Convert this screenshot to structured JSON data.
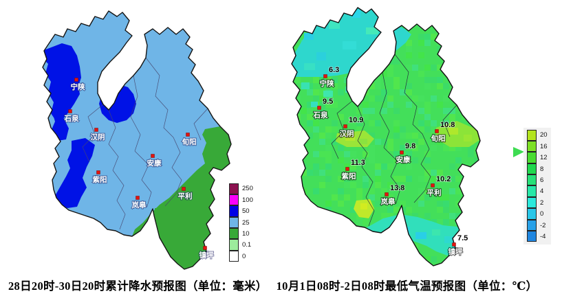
{
  "caption": {
    "precipitation": "28日20时-30日20时累计降水预报图（单位：毫米）",
    "temperature": "10月1日08时-2日08时最低气温预报图（单位：℃）"
  },
  "precip_map": {
    "base_color": "#6FB5E7",
    "heavy_rain_color": "#0012E6",
    "moderate_rain_color": "#38A938",
    "boundary_color": "#151515",
    "legend": [
      {
        "label": "250",
        "color": "#8C1250"
      },
      {
        "label": "100",
        "color": "#FB00FB"
      },
      {
        "label": "50",
        "color": "#0000E6"
      },
      {
        "label": "25",
        "color": "#6FB5E7"
      },
      {
        "label": "10",
        "color": "#38A938"
      },
      {
        "label": "0.1",
        "color": "#9CEC9C"
      },
      {
        "label": "0",
        "color": "#FFFFFF"
      }
    ],
    "cities": [
      "宁陕",
      "石泉",
      "汉阴",
      "旬阳",
      "安康",
      "紫阳",
      "平利",
      "岚皋",
      "镇坪"
    ],
    "marker_color": "#E3140F"
  },
  "temp_map": {
    "base_color": "#43DF5A",
    "boundary_color": "#101010",
    "legend": [
      {
        "label": "20",
        "color": "#B3E41E"
      },
      {
        "label": "16",
        "color": "#7DE024"
      },
      {
        "label": "12",
        "color": "#49DC30"
      },
      {
        "label": "8",
        "color": "#20D84E"
      },
      {
        "label": "6",
        "color": "#27E178"
      },
      {
        "label": "4",
        "color": "#28E8A8"
      },
      {
        "label": "2",
        "color": "#2BE9DC"
      },
      {
        "label": "0",
        "color": "#28C6E8"
      },
      {
        "label": "-2",
        "color": "#28A1E8"
      },
      {
        "label": "-4",
        "color": "#1F86E0"
      }
    ],
    "stations": [
      {
        "name": "宁陕",
        "value": "6.3"
      },
      {
        "name": "石泉",
        "value": "9.5"
      },
      {
        "name": "汉阴",
        "value": "10.9"
      },
      {
        "name": "旬阳",
        "value": "10.8"
      },
      {
        "name": "安康",
        "value": "9.8"
      },
      {
        "name": "紫阳",
        "value": "11.3"
      },
      {
        "name": "平利",
        "value": "10.2"
      },
      {
        "name": "岚皋",
        "value": "13.8"
      },
      {
        "name": "镇坪",
        "value": "7.5"
      }
    ],
    "marker_color": "#E3140F"
  }
}
